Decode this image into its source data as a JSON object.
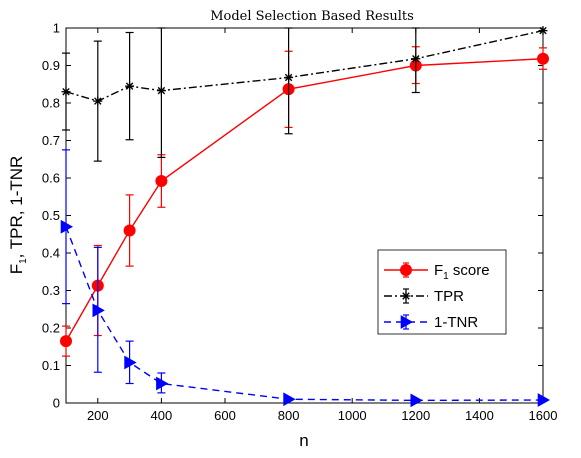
{
  "chart_data": {
    "type": "line",
    "title": "Model Selection Based Results",
    "xlabel": "n",
    "ylabel": {
      "main": "F",
      "sub": "1",
      "rest": ", TPR, 1-TNR"
    },
    "xlim": [
      100,
      1600
    ],
    "ylim": [
      0,
      1
    ],
    "xticks": [
      200,
      400,
      600,
      800,
      1000,
      1200,
      1400,
      1600
    ],
    "yticks": [
      0,
      0.1,
      0.2,
      0.3,
      0.4,
      0.5,
      0.6,
      0.7,
      0.8,
      0.9,
      1
    ],
    "x": [
      100,
      200,
      300,
      400,
      800,
      1200,
      1600
    ],
    "grid": false,
    "legend_position": "center-right",
    "series": [
      {
        "name": {
          "main": "F",
          "sub": "1",
          "rest": " score"
        },
        "color": "#ff0000",
        "line": "solid",
        "marker": "circle",
        "values": [
          0.165,
          0.313,
          0.46,
          0.592,
          0.837,
          0.9,
          0.918
        ],
        "err_low": [
          0.125,
          0.18,
          0.365,
          0.522,
          0.735,
          0.852,
          0.89
        ],
        "err_high": [
          0.205,
          0.42,
          0.555,
          0.662,
          0.938,
          0.95,
          0.947
        ]
      },
      {
        "name": "TPR",
        "color": "#000000",
        "line": "dashdot",
        "marker": "asterisk",
        "values": [
          0.83,
          0.805,
          0.845,
          0.833,
          0.868,
          0.918,
          0.993
        ],
        "err_low": [
          0.728,
          0.645,
          0.702,
          0.655,
          0.718,
          0.828,
          0.993
        ],
        "err_high": [
          0.933,
          0.965,
          0.988,
          1.0,
          1.0,
          1.0,
          0.993
        ]
      },
      {
        "name": "1-TNR",
        "color": "#0000ff",
        "line": "dashed",
        "marker": "triangle-right",
        "values": [
          0.47,
          0.247,
          0.108,
          0.052,
          0.01,
          0.007,
          0.008
        ],
        "err_low": [
          0.265,
          0.082,
          0.052,
          0.027,
          0.01,
          0.007,
          0.008
        ],
        "err_high": [
          0.675,
          0.415,
          0.165,
          0.08,
          0.01,
          0.007,
          0.008
        ]
      }
    ]
  }
}
